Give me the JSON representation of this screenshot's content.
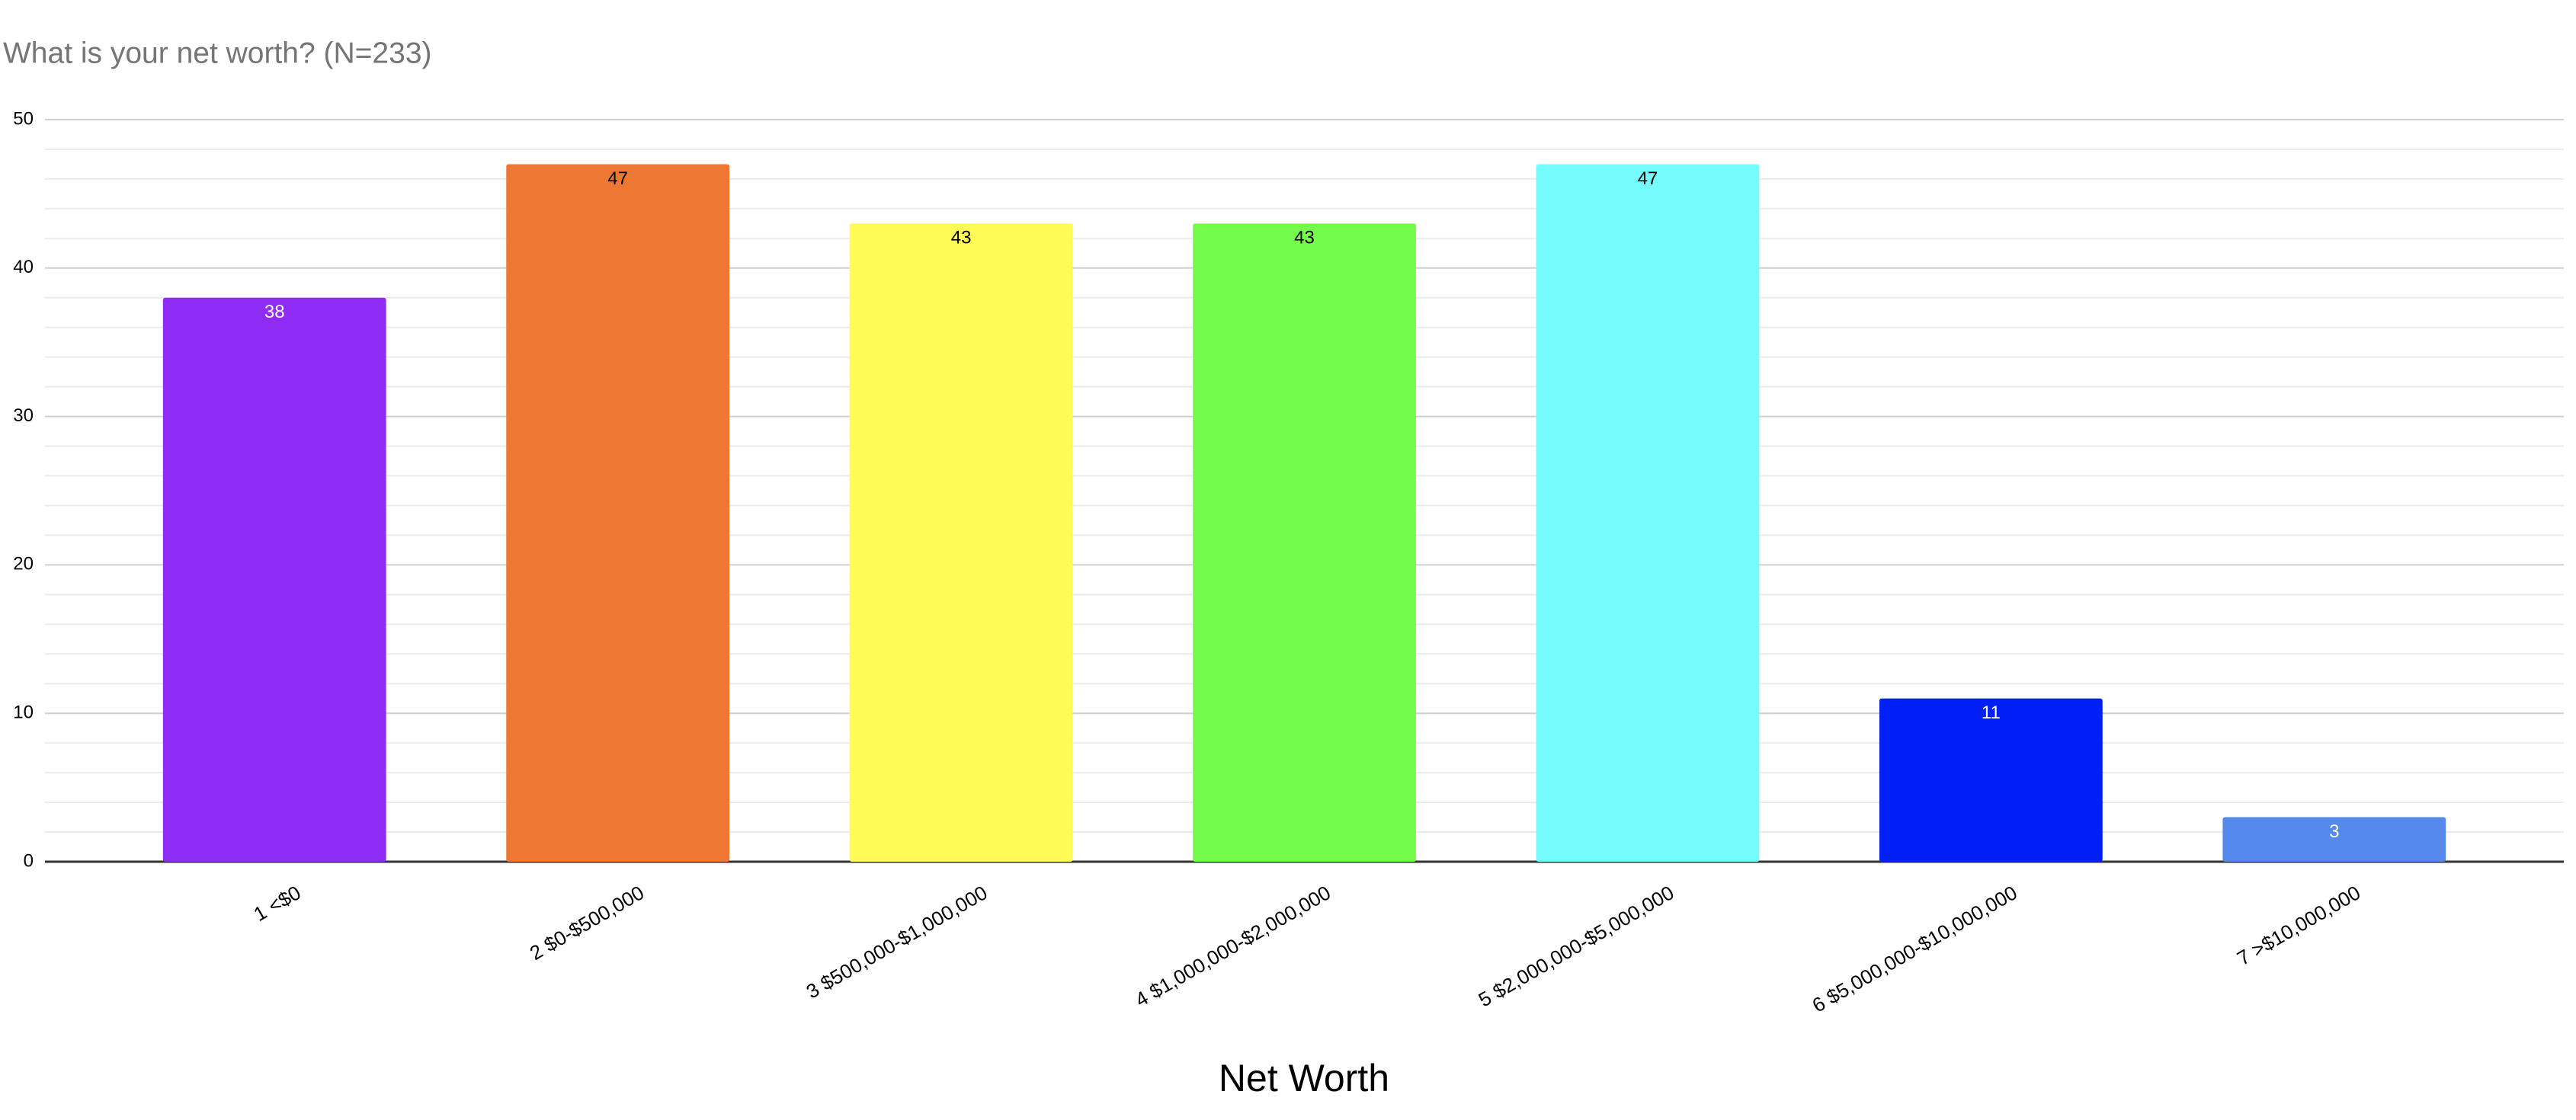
{
  "chart_data": {
    "type": "bar",
    "title": "What is your net worth? (N=233)",
    "x_label": "Net Worth",
    "categories": [
      "1 <$0",
      "2 $0-$500,000",
      "3 $500,000-$1,000,000",
      "4 $1,000,000-$2,000,000",
      "5 $2,000,000-$5,000,000",
      "6 $5,000,000-$10,000,000",
      "7 >$10,000,000"
    ],
    "values": [
      38,
      47,
      43,
      43,
      47,
      11,
      3
    ],
    "colors": [
      "#8e2cf5",
      "#ee7733",
      "#fffb56",
      "#74fb4c",
      "#75fdfd",
      "#001ff5",
      "#5589ec"
    ],
    "ylim": [
      0,
      50
    ],
    "yticks": [
      0,
      10,
      20,
      30,
      40,
      50
    ],
    "grid": true
  }
}
